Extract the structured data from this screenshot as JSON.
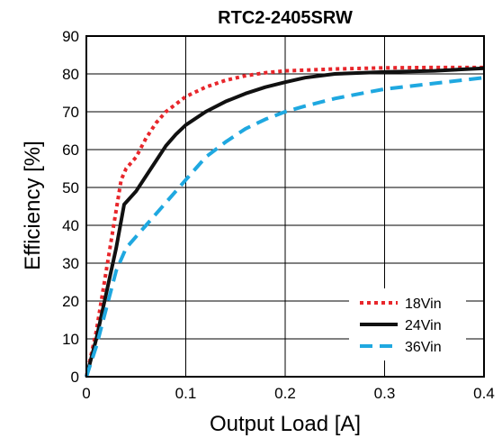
{
  "chart_data": {
    "type": "line",
    "title": "RTC2-2405SRW",
    "xlabel": "Output Load [A]",
    "ylabel": "Efficiency [%]",
    "xlim": [
      0,
      0.4
    ],
    "ylim": [
      0,
      90
    ],
    "x_ticks": [
      "0",
      "0.1",
      "0.2",
      "0.3",
      "0.4"
    ],
    "y_ticks": [
      "0",
      "10",
      "20",
      "30",
      "40",
      "50",
      "60",
      "70",
      "80",
      "90"
    ],
    "grid": true,
    "legend_position": "bottom-right",
    "series": [
      {
        "name": "18Vin",
        "color": "#e8262b",
        "style": "dotted",
        "points": [
          [
            0,
            0
          ],
          [
            0.01,
            12
          ],
          [
            0.02,
            28
          ],
          [
            0.03,
            44
          ],
          [
            0.035,
            52
          ],
          [
            0.04,
            55
          ],
          [
            0.05,
            58
          ],
          [
            0.06,
            63
          ],
          [
            0.07,
            67
          ],
          [
            0.08,
            70
          ],
          [
            0.09,
            72
          ],
          [
            0.1,
            74
          ],
          [
            0.12,
            76.5
          ],
          [
            0.14,
            78.3
          ],
          [
            0.16,
            79.5
          ],
          [
            0.18,
            80.3
          ],
          [
            0.2,
            80.8
          ],
          [
            0.25,
            81.3
          ],
          [
            0.3,
            81.6
          ],
          [
            0.35,
            81.7
          ],
          [
            0.4,
            81.7
          ]
        ]
      },
      {
        "name": "24Vin",
        "color": "#111111",
        "style": "solid",
        "points": [
          [
            0,
            0
          ],
          [
            0.01,
            10
          ],
          [
            0.02,
            22
          ],
          [
            0.03,
            34
          ],
          [
            0.038,
            45.5
          ],
          [
            0.05,
            49
          ],
          [
            0.06,
            53
          ],
          [
            0.07,
            57
          ],
          [
            0.08,
            61
          ],
          [
            0.09,
            64
          ],
          [
            0.1,
            66.5
          ],
          [
            0.12,
            70
          ],
          [
            0.14,
            72.7
          ],
          [
            0.16,
            74.8
          ],
          [
            0.18,
            76.5
          ],
          [
            0.2,
            77.8
          ],
          [
            0.22,
            79
          ],
          [
            0.25,
            80
          ],
          [
            0.3,
            80.5
          ],
          [
            0.35,
            80.8
          ],
          [
            0.4,
            81.5
          ]
        ]
      },
      {
        "name": "36Vin",
        "color": "#1fa8e0",
        "style": "dashed",
        "points": [
          [
            0,
            0
          ],
          [
            0.01,
            8
          ],
          [
            0.02,
            18
          ],
          [
            0.03,
            28
          ],
          [
            0.04,
            34
          ],
          [
            0.05,
            37
          ],
          [
            0.06,
            40
          ],
          [
            0.07,
            43
          ],
          [
            0.08,
            46
          ],
          [
            0.09,
            49
          ],
          [
            0.1,
            52
          ],
          [
            0.11,
            55
          ],
          [
            0.12,
            58
          ],
          [
            0.14,
            62
          ],
          [
            0.16,
            65.5
          ],
          [
            0.18,
            68
          ],
          [
            0.2,
            70
          ],
          [
            0.22,
            71.5
          ],
          [
            0.25,
            73.5
          ],
          [
            0.3,
            76
          ],
          [
            0.35,
            77.5
          ],
          [
            0.4,
            79
          ]
        ]
      }
    ]
  }
}
